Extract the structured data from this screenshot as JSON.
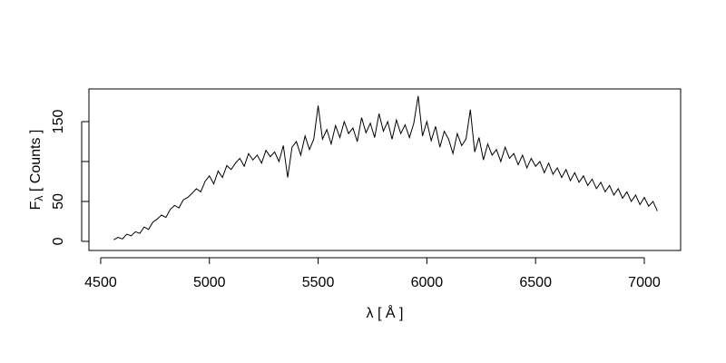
{
  "chart_data": {
    "type": "line",
    "xlabel": "λ [ Å ]",
    "ylabel": {
      "main": "F",
      "sub": "λ",
      "rest": " [ Counts ]"
    },
    "color": "#000000",
    "x": [
      4560,
      4580,
      4600,
      4620,
      4640,
      4660,
      4680,
      4700,
      4720,
      4740,
      4760,
      4780,
      4800,
      4820,
      4840,
      4860,
      4880,
      4900,
      4920,
      4940,
      4960,
      4980,
      5000,
      5020,
      5040,
      5060,
      5080,
      5100,
      5120,
      5140,
      5160,
      5180,
      5200,
      5220,
      5240,
      5260,
      5280,
      5300,
      5320,
      5340,
      5360,
      5380,
      5400,
      5420,
      5440,
      5460,
      5480,
      5500,
      5520,
      5540,
      5560,
      5580,
      5600,
      5620,
      5640,
      5660,
      5680,
      5700,
      5720,
      5740,
      5760,
      5780,
      5800,
      5820,
      5840,
      5860,
      5880,
      5900,
      5920,
      5940,
      5960,
      5980,
      6000,
      6020,
      6040,
      6060,
      6080,
      6100,
      6120,
      6140,
      6160,
      6180,
      6200,
      6220,
      6240,
      6260,
      6280,
      6300,
      6320,
      6340,
      6360,
      6380,
      6400,
      6420,
      6440,
      6460,
      6480,
      6500,
      6520,
      6540,
      6560,
      6580,
      6600,
      6620,
      6640,
      6660,
      6680,
      6700,
      6720,
      6740,
      6760,
      6780,
      6800,
      6820,
      6840,
      6860,
      6880,
      6900,
      6920,
      6940,
      6960,
      6980,
      7000,
      7020,
      7040,
      7060
    ],
    "values": [
      2,
      5,
      3,
      9,
      7,
      12,
      10,
      18,
      15,
      24,
      28,
      33,
      30,
      40,
      45,
      42,
      52,
      55,
      60,
      66,
      62,
      75,
      82,
      72,
      88,
      80,
      95,
      90,
      98,
      104,
      94,
      110,
      102,
      108,
      98,
      114,
      106,
      112,
      100,
      120,
      80,
      118,
      125,
      108,
      132,
      115,
      128,
      170,
      128,
      140,
      122,
      145,
      130,
      150,
      135,
      142,
      125,
      155,
      136,
      148,
      130,
      160,
      138,
      150,
      128,
      152,
      135,
      146,
      130,
      148,
      182,
      132,
      150,
      126,
      144,
      118,
      138,
      128,
      110,
      135,
      120,
      128,
      165,
      112,
      130,
      102,
      122,
      108,
      115,
      100,
      118,
      104,
      110,
      96,
      108,
      92,
      104,
      94,
      100,
      86,
      98,
      84,
      92,
      80,
      90,
      76,
      86,
      74,
      82,
      70,
      78,
      66,
      74,
      62,
      70,
      58,
      66,
      54,
      62,
      50,
      58,
      46,
      55,
      44,
      50,
      38
    ],
    "xlim": [
      4446,
      7167
    ],
    "ylim": [
      -11.4,
      190.9
    ],
    "xticks": [
      4500,
      5000,
      5500,
      6000,
      6500,
      7000
    ],
    "yticks": [
      0,
      50,
      150
    ],
    "yticks_unlabeled": [
      100
    ]
  }
}
